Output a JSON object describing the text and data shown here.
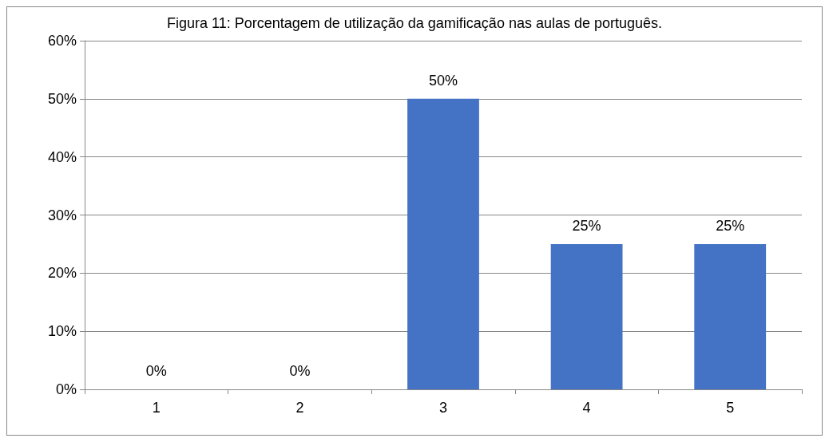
{
  "chart_data": {
    "type": "bar",
    "title": "Figura 11: Porcentagem de utilização da gamificação nas aulas de português.",
    "categories": [
      "1",
      "2",
      "3",
      "4",
      "5"
    ],
    "values": [
      0,
      0,
      50,
      25,
      25
    ],
    "value_labels": [
      "0%",
      "0%",
      "50%",
      "25%",
      "25%"
    ],
    "color": "#4472c4",
    "ylim": [
      0,
      60
    ],
    "yticks": [
      {
        "value": 0,
        "label": "0%"
      },
      {
        "value": 10,
        "label": "10%"
      },
      {
        "value": 20,
        "label": "20%"
      },
      {
        "value": 30,
        "label": "30%"
      },
      {
        "value": 40,
        "label": "40%"
      },
      {
        "value": 50,
        "label": "50%"
      },
      {
        "value": 60,
        "label": "60%"
      }
    ],
    "grid": "y"
  }
}
